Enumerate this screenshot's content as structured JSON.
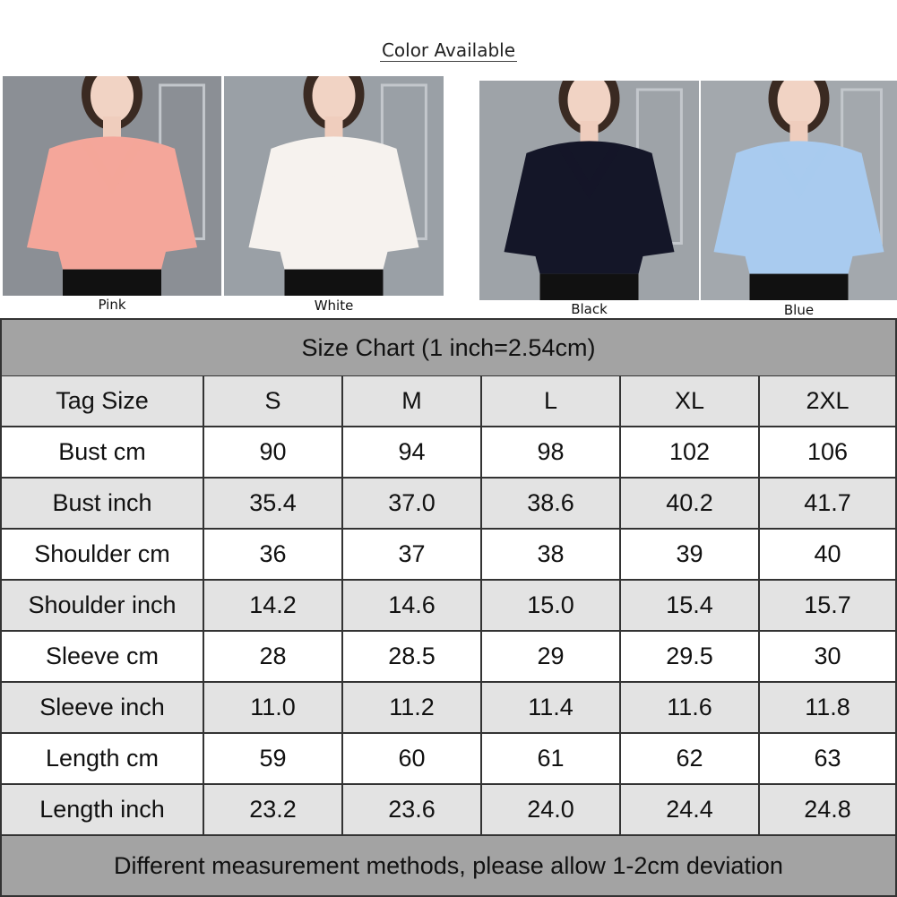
{
  "header": {
    "title": "Color Available"
  },
  "colors": [
    {
      "label": "Pink"
    },
    {
      "label": "White"
    },
    {
      "label": "Black"
    },
    {
      "label": "Blue"
    }
  ],
  "size_chart": {
    "title": "Size Chart (1 inch=2.54cm)",
    "columns": [
      "Tag Size",
      "S",
      "M",
      "L",
      "XL",
      "2XL"
    ],
    "rows": [
      [
        "Bust cm",
        "90",
        "94",
        "98",
        "102",
        "106"
      ],
      [
        "Bust inch",
        "35.4",
        "37.0",
        "38.6",
        "40.2",
        "41.7"
      ],
      [
        "Shoulder cm",
        "36",
        "37",
        "38",
        "39",
        "40"
      ],
      [
        "Shoulder inch",
        "14.2",
        "14.6",
        "15.0",
        "15.4",
        "15.7"
      ],
      [
        "Sleeve cm",
        "28",
        "28.5",
        "29",
        "29.5",
        "30"
      ],
      [
        "Sleeve inch",
        "11.0",
        "11.2",
        "11.4",
        "11.6",
        "11.8"
      ],
      [
        "Length cm",
        "59",
        "60",
        "61",
        "62",
        "63"
      ],
      [
        "Length inch",
        "23.2",
        "23.6",
        "24.0",
        "24.4",
        "24.8"
      ]
    ],
    "note": "Different measurement methods, please allow 1-2cm deviation"
  }
}
